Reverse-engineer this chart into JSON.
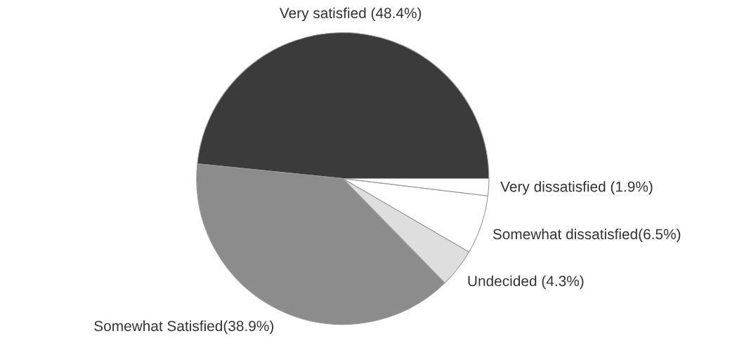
{
  "chart_data": {
    "type": "pie",
    "categories": [
      "Very satisfied (48.4%)",
      "Somewhat Satisfied(38.9%)",
      "Undecided (4.3%)",
      "Somewhat dissatisfied(6.5%)",
      "Very dissatisfied (1.9%)"
    ],
    "values": [
      48.4,
      38.9,
      4.3,
      6.5,
      1.9
    ],
    "colors": [
      "#3b3b3b",
      "#8c8c8c",
      "#dedede",
      "#ffffff",
      "#ffffff"
    ]
  }
}
